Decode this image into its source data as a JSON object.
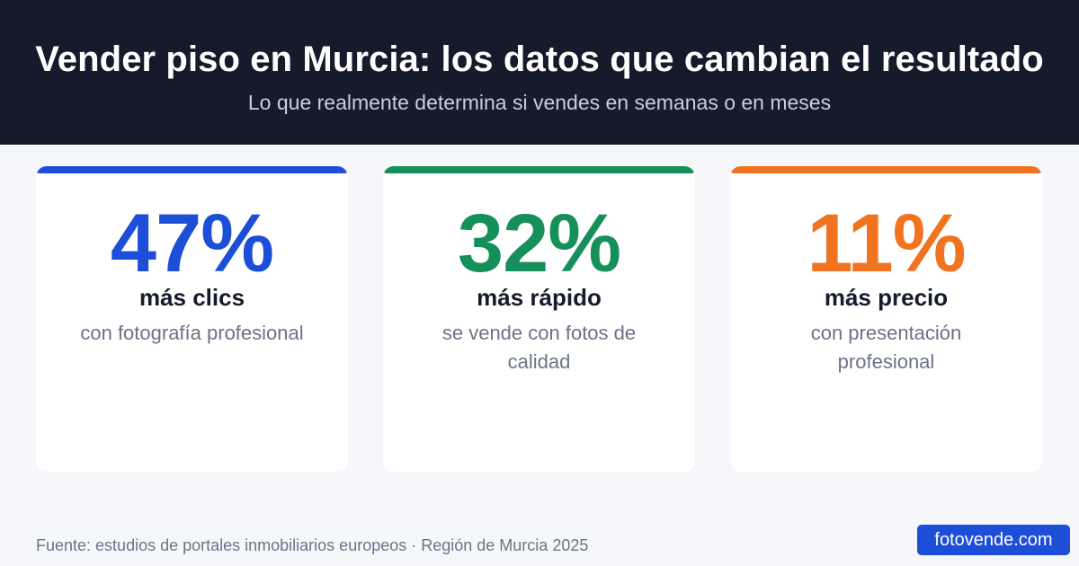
{
  "header": {
    "title": "Vender piso en Murcia: los datos que cambian el resultado",
    "subtitle": "Lo que realmente determina si vendes en semanas o en meses"
  },
  "cards": [
    {
      "stat": "47%",
      "headline": "más clics",
      "description": "con fotografía profesional",
      "accent_color": "#1d4ed8"
    },
    {
      "stat": "32%",
      "headline": "más rápido",
      "description": "se vende con fotos de calidad",
      "accent_color": "#15905a"
    },
    {
      "stat": "11%",
      "headline": "más precio",
      "description": "con presentación profesional",
      "accent_color": "#f07320"
    }
  ],
  "footer": {
    "source": "Fuente: estudios de portales inmobiliarios europeos · Región de Murcia 2025",
    "brand": "fotovende.com",
    "brand_color": "#1d4ed8"
  },
  "colors": {
    "header_background": "#161b2c",
    "page_background": "#f5f7fa"
  }
}
